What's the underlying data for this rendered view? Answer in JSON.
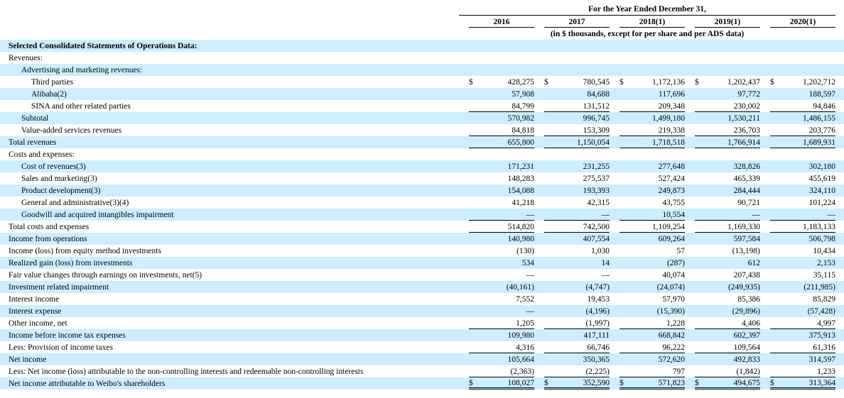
{
  "header": {
    "title": "For the Year Ended December 31,",
    "years": [
      "2016",
      "2017",
      "2018(1)",
      "2019(1)",
      "2020(1)"
    ],
    "subtitle": "(in $ thousands, except for per share and per ADS data)"
  },
  "table": {
    "currency": "$",
    "highlight_color": "#cceeff",
    "rows": [
      {
        "label": "Selected Consolidated Statements of Operations Data:",
        "indent": 0,
        "bold": true,
        "shade": true,
        "values": null
      },
      {
        "label": "Revenues:",
        "indent": 0,
        "shade": false,
        "values": null
      },
      {
        "label": "Advertising and marketing revenues:",
        "indent": 1,
        "shade": true,
        "values": null
      },
      {
        "label": "Third parties",
        "indent": 2,
        "shade": false,
        "dollar": true,
        "values": [
          "428,275",
          "780,545",
          "1,172,136",
          "1,202,437",
          "1,202,712"
        ]
      },
      {
        "label": "Alibaba(2)",
        "indent": 2,
        "shade": true,
        "values": [
          "57,908",
          "84,688",
          "117,696",
          "97,772",
          "188,597"
        ]
      },
      {
        "label": "SINA and other related parties",
        "indent": 2,
        "shade": false,
        "underline": "single",
        "values": [
          "84,799",
          "131,512",
          "209,348",
          "230,002",
          "94,846"
        ]
      },
      {
        "label": "Subtotal",
        "indent": 1,
        "shade": true,
        "values": [
          "570,982",
          "996,745",
          "1,499,180",
          "1,530,211",
          "1,486,155"
        ]
      },
      {
        "label": "Value-added services revenues",
        "indent": 1,
        "shade": false,
        "underline": "single",
        "values": [
          "84,818",
          "153,309",
          "219,338",
          "236,703",
          "203,776"
        ]
      },
      {
        "label": "Total revenues",
        "indent": 0,
        "shade": true,
        "underline": "single",
        "values": [
          "655,800",
          "1,150,054",
          "1,718,518",
          "1,766,914",
          "1,689,931"
        ]
      },
      {
        "label": "Costs and expenses:",
        "indent": 0,
        "shade": false,
        "values": null
      },
      {
        "label": "Cost of revenues(3)",
        "indent": 1,
        "shade": true,
        "values": [
          "171,231",
          "231,255",
          "277,648",
          "328,826",
          "302,180"
        ]
      },
      {
        "label": "Sales and marketing(3)",
        "indent": 1,
        "shade": false,
        "values": [
          "148,283",
          "275,537",
          "527,424",
          "465,339",
          "455,619"
        ]
      },
      {
        "label": "Product development(3)",
        "indent": 1,
        "shade": true,
        "values": [
          "154,088",
          "193,393",
          "249,873",
          "284,444",
          "324,110"
        ]
      },
      {
        "label": "General and administrative(3)(4)",
        "indent": 1,
        "shade": false,
        "values": [
          "41,218",
          "42,315",
          "43,755",
          "90,721",
          "101,224"
        ]
      },
      {
        "label": "Goodwill and acquired intangibles impairment",
        "indent": 1,
        "shade": true,
        "underline": "single",
        "values": [
          "—",
          "—",
          "10,554",
          "—",
          "—"
        ]
      },
      {
        "label": "Total costs and expenses",
        "indent": 0,
        "shade": false,
        "underline": "single",
        "values": [
          "514,820",
          "742,500",
          "1,109,254",
          "1,169,330",
          "1,183,133"
        ]
      },
      {
        "label": "Income from operations",
        "indent": 0,
        "shade": true,
        "values": [
          "140,980",
          "407,554",
          "609,264",
          "597,584",
          "506,798"
        ]
      },
      {
        "label": "Income (loss) from equity method investments",
        "indent": 0,
        "shade": false,
        "values": [
          "(130)",
          "1,030",
          "57",
          "(13,198)",
          "10,434"
        ]
      },
      {
        "label": "Realized gain (loss) from investments",
        "indent": 0,
        "shade": true,
        "values": [
          "534",
          "14",
          "(287)",
          "612",
          "2,153"
        ]
      },
      {
        "label": "Fair value changes through earnings on investments, net(5)",
        "indent": 0,
        "shade": false,
        "values": [
          "—",
          "—",
          "40,074",
          "207,438",
          "35,115"
        ]
      },
      {
        "label": "Investment related impairment",
        "indent": 0,
        "shade": true,
        "values": [
          "(40,161)",
          "(4,747)",
          "(24,074)",
          "(249,935)",
          "(211,985)"
        ]
      },
      {
        "label": "Interest income",
        "indent": 0,
        "shade": false,
        "values": [
          "7,552",
          "19,453",
          "57,970",
          "85,386",
          "85,829"
        ]
      },
      {
        "label": "Interest expense",
        "indent": 0,
        "shade": true,
        "values": [
          "—",
          "(4,196)",
          "(15,390)",
          "(29,896)",
          "(57,428)"
        ]
      },
      {
        "label": "Other income, net",
        "indent": 0,
        "shade": false,
        "underline": "single",
        "values": [
          "1,205",
          "(1,997)",
          "1,228",
          "4,406",
          "4,997"
        ]
      },
      {
        "label": "Income before income tax expenses",
        "indent": 0,
        "shade": true,
        "values": [
          "109,980",
          "417,111",
          "668,842",
          "602,397",
          "375,913"
        ]
      },
      {
        "label": "Less: Provision of income taxes",
        "indent": 0,
        "shade": false,
        "underline": "single",
        "values": [
          "4,316",
          "66,746",
          "96,222",
          "109,564",
          "61,316"
        ]
      },
      {
        "label": "Net income",
        "indent": 0,
        "shade": true,
        "values": [
          "105,664",
          "350,365",
          "572,620",
          "492,833",
          "314,597"
        ]
      },
      {
        "label": "Less: Net income (loss) attributable to the non-controlling interests and redeemable non-controlling interests",
        "indent": 0,
        "shade": false,
        "underline": "single",
        "values": [
          "(2,363)",
          "(2,225)",
          "797",
          "(1,842)",
          "1,233"
        ]
      },
      {
        "label": "Net income attributable to Weibo's shareholders",
        "indent": 0,
        "shade": true,
        "dollar": true,
        "underline": "double",
        "values": [
          "108,027",
          "352,590",
          "571,823",
          "494,675",
          "313,364"
        ]
      }
    ]
  }
}
